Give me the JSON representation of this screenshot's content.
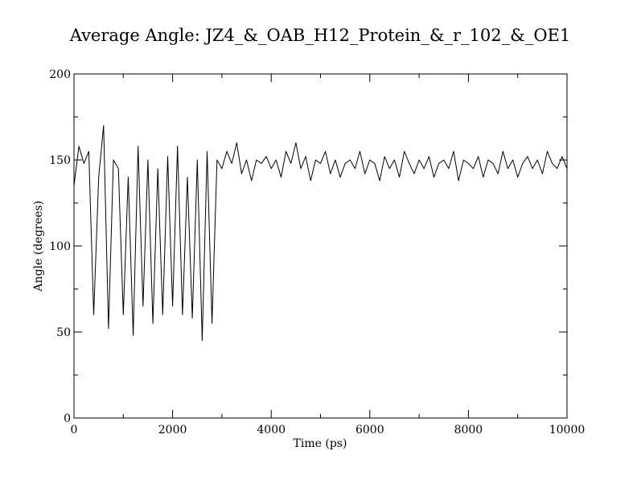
{
  "chart_data": {
    "type": "line",
    "title": "Average Angle: JZ4_&_OAB_H12_Protein_&_r_102_&_OE1",
    "xlabel": "Time (ps)",
    "ylabel": "Angle (degrees)",
    "xlim": [
      0,
      10000
    ],
    "ylim": [
      0,
      200
    ],
    "x_ticks": [
      0,
      2000,
      4000,
      6000,
      8000,
      10000
    ],
    "y_ticks": [
      0,
      50,
      100,
      150,
      200
    ],
    "x_tick_labels": [
      "0",
      "2000",
      "4000",
      "6000",
      "8000",
      "10000"
    ],
    "y_tick_labels": [
      "0",
      "50",
      "100",
      "150",
      "200"
    ],
    "grid": false,
    "legend": "none",
    "line_color": "#000000",
    "series": [
      {
        "x": [
          0,
          100,
          200,
          300,
          400,
          500,
          600,
          700,
          800,
          900,
          1000,
          1100,
          1200,
          1300,
          1400,
          1500,
          1600,
          1700,
          1800,
          1900,
          2000,
          2100,
          2200,
          2300,
          2400,
          2500,
          2600,
          2700,
          2800,
          2900,
          3000,
          3100,
          3200,
          3300,
          3400,
          3500,
          3600,
          3700,
          3800,
          3900,
          4000,
          4100,
          4200,
          4300,
          4400,
          4500,
          4600,
          4700,
          4800,
          4900,
          5000,
          5100,
          5200,
          5300,
          5400,
          5500,
          5600,
          5700,
          5800,
          5900,
          6000,
          6100,
          6200,
          6300,
          6400,
          6500,
          6600,
          6700,
          6800,
          6900,
          7000,
          7100,
          7200,
          7300,
          7400,
          7500,
          7600,
          7700,
          7800,
          7900,
          8000,
          8100,
          8200,
          8300,
          8400,
          8500,
          8600,
          8700,
          8800,
          8900,
          9000,
          9100,
          9200,
          9300,
          9400,
          9500,
          9600,
          9700,
          9800,
          9900,
          10000
        ],
        "values": [
          135,
          158,
          148,
          155,
          60,
          140,
          170,
          52,
          150,
          145,
          60,
          140,
          48,
          158,
          65,
          150,
          55,
          145,
          60,
          152,
          65,
          158,
          60,
          140,
          58,
          150,
          45,
          155,
          55,
          150,
          145,
          155,
          148,
          160,
          142,
          150,
          138,
          150,
          148,
          152,
          145,
          150,
          140,
          155,
          148,
          160,
          145,
          152,
          138,
          150,
          148,
          155,
          142,
          150,
          140,
          148,
          150,
          145,
          155,
          142,
          150,
          148,
          138,
          152,
          145,
          150,
          140,
          155,
          148,
          142,
          150,
          145,
          152,
          140,
          148,
          150,
          145,
          155,
          138,
          150,
          148,
          145,
          152,
          140,
          150,
          148,
          142,
          155,
          145,
          150,
          140,
          148,
          152,
          145,
          150,
          142,
          155,
          148,
          145,
          152,
          145
        ]
      }
    ]
  }
}
